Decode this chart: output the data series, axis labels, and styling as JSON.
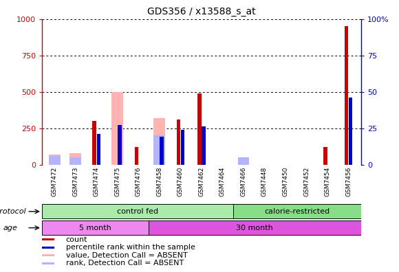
{
  "title": "GDS356 / x13588_s_at",
  "samples": [
    "GSM7472",
    "GSM7473",
    "GSM7474",
    "GSM7475",
    "GSM7476",
    "GSM7458",
    "GSM7460",
    "GSM7462",
    "GSM7464",
    "GSM7466",
    "GSM7448",
    "GSM7450",
    "GSM7452",
    "GSM7454",
    "GSM7456"
  ],
  "count_values": [
    0,
    0,
    300,
    0,
    120,
    0,
    310,
    490,
    0,
    0,
    0,
    0,
    0,
    120,
    950
  ],
  "rank_values": [
    0,
    0,
    21,
    27,
    0,
    19,
    24,
    26,
    0,
    0,
    0,
    0,
    0,
    0,
    46
  ],
  "absent_count": [
    70,
    80,
    0,
    500,
    0,
    320,
    0,
    0,
    0,
    0,
    0,
    0,
    0,
    0,
    0
  ],
  "absent_rank": [
    6,
    5,
    0,
    0,
    0,
    20,
    0,
    0,
    0,
    5,
    0,
    0,
    0,
    0,
    0
  ],
  "count_color": "#cc0000",
  "rank_color": "#0000cc",
  "absent_count_color": "#ffb3b3",
  "absent_rank_color": "#b3b3ff",
  "ylim_left": [
    0,
    1000
  ],
  "ylim_right": [
    0,
    100
  ],
  "yticks_left": [
    0,
    250,
    500,
    750,
    1000
  ],
  "yticks_right": [
    0,
    25,
    50,
    75,
    100
  ],
  "protocol_labels": [
    {
      "text": "control fed",
      "start": 0,
      "end": 9,
      "color": "#aaeaaa"
    },
    {
      "text": "calorie-restricted",
      "start": 9,
      "end": 15,
      "color": "#88dd88"
    }
  ],
  "age_labels": [
    {
      "text": "5 month",
      "start": 0,
      "end": 5,
      "color": "#ee88ee"
    },
    {
      "text": "30 month",
      "start": 5,
      "end": 15,
      "color": "#dd55dd"
    }
  ],
  "legend_items": [
    {
      "color": "#cc0000",
      "label": "count"
    },
    {
      "color": "#0000cc",
      "label": "percentile rank within the sample"
    },
    {
      "color": "#ffb3b3",
      "label": "value, Detection Call = ABSENT"
    },
    {
      "color": "#b3b3ff",
      "label": "rank, Detection Call = ABSENT"
    }
  ],
  "plot_bg": "#ffffff",
  "xtick_bg": "#d8d8d8"
}
